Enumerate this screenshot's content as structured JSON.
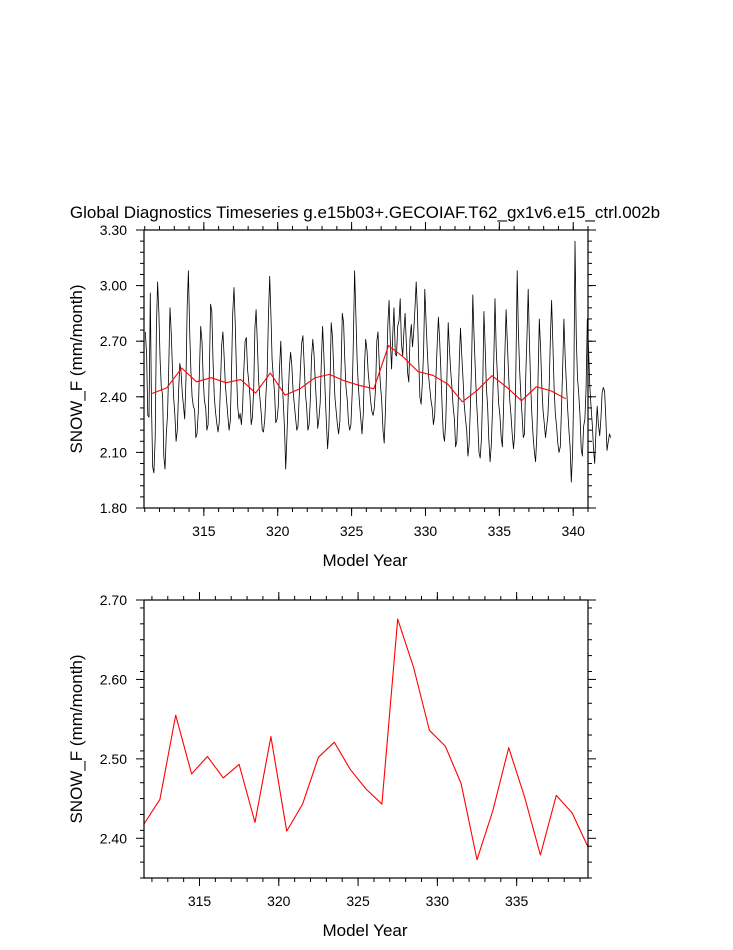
{
  "figure": {
    "title": "Global Diagnostics Timeseries g.e15b03+.GECOIAF.T62_gx1v6.e15_ctrl.002b"
  },
  "chart_data": [
    {
      "type": "line",
      "xlabel": "Model Year",
      "ylabel": "SNOW_F (mm/month)",
      "xlim": [
        310.95,
        341.0
      ],
      "ylim": [
        1.8,
        3.3
      ],
      "x_ticks": [
        315,
        320,
        325,
        330,
        335,
        340
      ],
      "x_tick_labels": [
        "315",
        "320",
        "325",
        "330",
        "335",
        "340"
      ],
      "y_ticks": [
        1.8,
        2.1,
        2.4,
        2.7,
        3.0,
        3.3
      ],
      "y_tick_labels": [
        "1.80",
        "2.10",
        "2.40",
        "2.70",
        "3.00",
        "3.30"
      ],
      "grid": false,
      "series": [
        {
          "color": "#000000",
          "x_start": 311.04,
          "x_step": 0.08333,
          "values": [
            2.75,
            2.63,
            2.3,
            2.29,
            2.96,
            2.35,
            2.02,
            1.99,
            2.18,
            2.77,
            3.02,
            2.85,
            2.6,
            2.45,
            2.41,
            2.08,
            2.01,
            2.2,
            2.3,
            2.55,
            2.88,
            2.75,
            2.56,
            2.4,
            2.3,
            2.16,
            2.22,
            2.43,
            2.58,
            2.54,
            2.42,
            2.35,
            2.28,
            2.5,
            2.89,
            3.08,
            2.75,
            2.54,
            2.4,
            2.35,
            2.33,
            2.18,
            2.2,
            2.32,
            2.55,
            2.78,
            2.7,
            2.5,
            2.38,
            2.34,
            2.22,
            2.25,
            2.55,
            2.9,
            2.86,
            2.6,
            2.4,
            2.32,
            2.26,
            2.21,
            2.26,
            2.45,
            2.68,
            2.75,
            2.62,
            2.46,
            2.38,
            2.3,
            2.22,
            2.27,
            2.53,
            2.85,
            2.99,
            2.8,
            2.55,
            2.35,
            2.28,
            2.31,
            2.25,
            2.34,
            2.54,
            2.7,
            2.72,
            2.55,
            2.48,
            2.4,
            2.25,
            2.29,
            2.44,
            2.77,
            2.87,
            2.68,
            2.49,
            2.4,
            2.32,
            2.22,
            2.21,
            2.28,
            2.42,
            2.53,
            2.85,
            3.05,
            2.85,
            2.6,
            2.5,
            2.42,
            2.26,
            2.28,
            2.35,
            2.55,
            2.7,
            2.5,
            2.38,
            2.23,
            2.01,
            2.18,
            2.4,
            2.56,
            2.64,
            2.57,
            2.43,
            2.36,
            2.29,
            2.22,
            2.24,
            2.4,
            2.56,
            2.69,
            2.73,
            2.57,
            2.42,
            2.35,
            2.22,
            2.25,
            2.38,
            2.61,
            2.71,
            2.63,
            2.49,
            2.36,
            2.23,
            2.28,
            2.37,
            2.6,
            2.78,
            2.62,
            2.43,
            2.27,
            2.12,
            2.22,
            2.46,
            2.8,
            2.72,
            2.55,
            2.4,
            2.32,
            2.25,
            2.2,
            2.27,
            2.55,
            2.85,
            2.8,
            2.6,
            2.45,
            2.38,
            2.26,
            2.22,
            2.25,
            2.42,
            2.71,
            3.08,
            2.84,
            2.6,
            2.46,
            2.36,
            2.28,
            2.2,
            2.31,
            2.57,
            2.71,
            2.65,
            2.53,
            2.46,
            2.38,
            2.32,
            2.3,
            2.34,
            2.45,
            2.7,
            2.75,
            2.57,
            2.46,
            2.38,
            2.22,
            2.15,
            2.32,
            2.57,
            2.8,
            2.92,
            2.7,
            2.55,
            2.74,
            2.88,
            2.63,
            2.62,
            2.78,
            2.81,
            2.93,
            2.69,
            2.62,
            2.75,
            2.85,
            2.68,
            2.53,
            2.48,
            2.71,
            2.79,
            2.67,
            2.75,
            2.88,
            3.02,
            2.86,
            2.6,
            2.4,
            2.36,
            2.48,
            2.65,
            2.98,
            2.8,
            2.65,
            2.52,
            2.45,
            2.38,
            2.34,
            2.25,
            2.3,
            2.5,
            2.67,
            2.83,
            2.71,
            2.55,
            2.35,
            2.2,
            2.16,
            2.27,
            2.52,
            2.8,
            2.66,
            2.54,
            2.45,
            2.35,
            2.28,
            2.13,
            2.16,
            2.35,
            2.6,
            2.77,
            2.62,
            2.5,
            2.36,
            2.28,
            2.22,
            2.08,
            2.14,
            2.35,
            2.58,
            2.95,
            2.72,
            2.55,
            2.38,
            2.25,
            2.1,
            2.07,
            2.18,
            2.44,
            2.86,
            2.68,
            2.45,
            2.35,
            2.17,
            2.05,
            2.14,
            2.33,
            2.6,
            2.93,
            2.66,
            2.5,
            2.36,
            2.3,
            2.18,
            2.13,
            2.35,
            2.62,
            2.87,
            2.7,
            2.53,
            2.38,
            2.3,
            2.2,
            2.12,
            2.2,
            2.55,
            3.08,
            2.75,
            2.55,
            2.4,
            2.3,
            2.18,
            2.2,
            2.52,
            2.73,
            2.98,
            2.68,
            2.46,
            2.3,
            2.18,
            2.1,
            2.05,
            2.2,
            2.51,
            2.82,
            2.66,
            2.46,
            2.33,
            2.26,
            2.18,
            2.24,
            2.3,
            2.46,
            2.72,
            2.92,
            2.68,
            2.45,
            2.31,
            2.24,
            2.15,
            2.1,
            2.13,
            2.34,
            2.56,
            2.82,
            2.61,
            2.47,
            2.34,
            2.22,
            2.13,
            1.94,
            2.1,
            2.45,
            3.24,
            2.72,
            2.5,
            2.42,
            2.3,
            2.12,
            2.08,
            2.24,
            2.28,
            2.45,
            2.82,
            2.65,
            2.46,
            2.35,
            2.25,
            2.12,
            2.04,
            2.22,
            2.35,
            2.25,
            2.19,
            2.28,
            2.42,
            2.45,
            2.43,
            2.29,
            2.11,
            2.16,
            2.2,
            2.18
          ]
        },
        {
          "color": "#ff0000",
          "x": [
            311.5,
            312.5,
            313.5,
            314.5,
            315.5,
            316.5,
            317.5,
            318.5,
            319.5,
            320.5,
            321.5,
            322.5,
            323.5,
            324.5,
            325.5,
            326.5,
            327.5,
            328.5,
            329.5,
            330.5,
            331.5,
            332.5,
            333.5,
            334.5,
            335.5,
            336.5,
            337.5,
            338.5,
            339.5
          ],
          "values": [
            2.418,
            2.449,
            2.555,
            2.481,
            2.503,
            2.476,
            2.493,
            2.42,
            2.528,
            2.409,
            2.443,
            2.502,
            2.521,
            2.487,
            2.462,
            2.443,
            2.676,
            2.615,
            2.536,
            2.516,
            2.469,
            2.373,
            2.435,
            2.514,
            2.452,
            2.379,
            2.454,
            2.432,
            2.389
          ]
        }
      ]
    },
    {
      "type": "line",
      "xlabel": "Model Year",
      "ylabel": "SNOW_F (mm/month)",
      "xlim": [
        311.5,
        339.5
      ],
      "ylim": [
        2.35,
        2.7
      ],
      "x_ticks": [
        315,
        320,
        325,
        330,
        335
      ],
      "x_tick_labels": [
        "315",
        "320",
        "325",
        "330",
        "335"
      ],
      "y_ticks": [
        2.4,
        2.5,
        2.6,
        2.7
      ],
      "y_tick_labels": [
        "2.40",
        "2.50",
        "2.60",
        "2.70"
      ],
      "grid": false,
      "series": [
        {
          "color": "#ff0000",
          "x": [
            311.5,
            312.5,
            313.5,
            314.5,
            315.5,
            316.5,
            317.5,
            318.5,
            319.5,
            320.5,
            321.5,
            322.5,
            323.5,
            324.5,
            325.5,
            326.5,
            327.5,
            328.5,
            329.5,
            330.5,
            331.5,
            332.5,
            333.5,
            334.5,
            335.5,
            336.5,
            337.5,
            338.5,
            339.5
          ],
          "values": [
            2.418,
            2.449,
            2.555,
            2.481,
            2.503,
            2.476,
            2.493,
            2.42,
            2.528,
            2.409,
            2.443,
            2.502,
            2.521,
            2.487,
            2.462,
            2.443,
            2.676,
            2.615,
            2.536,
            2.516,
            2.469,
            2.373,
            2.435,
            2.514,
            2.452,
            2.379,
            2.454,
            2.432,
            2.389
          ]
        }
      ]
    }
  ]
}
